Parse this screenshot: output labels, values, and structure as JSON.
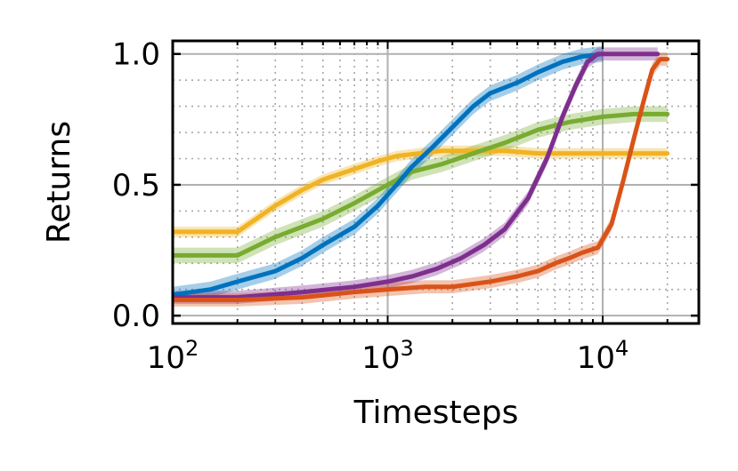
{
  "chart_data": {
    "type": "line",
    "xlabel": "Timesteps",
    "ylabel": "Returns",
    "x_scale": "log",
    "xlim": [
      100,
      28000
    ],
    "ylim": [
      -0.03,
      1.05
    ],
    "grid": true,
    "minor_grid": true,
    "x_ticks": [
      {
        "value": 100,
        "base": "10",
        "exp": "2"
      },
      {
        "value": 1000,
        "base": "10",
        "exp": "3"
      },
      {
        "value": 10000,
        "base": "10",
        "exp": "4"
      }
    ],
    "y_ticks": [
      {
        "value": 0.0,
        "label": "0.0"
      },
      {
        "value": 0.5,
        "label": "0.5"
      },
      {
        "value": 1.0,
        "label": "1.0"
      }
    ],
    "series": [
      {
        "color": "#f0b323",
        "x": [
          100,
          200,
          300,
          400,
          500,
          700,
          900,
          1100,
          1400,
          1800,
          2500,
          3500,
          5000,
          8000,
          12000,
          20000
        ],
        "y": [
          0.32,
          0.32,
          0.42,
          0.48,
          0.52,
          0.56,
          0.59,
          0.61,
          0.62,
          0.63,
          0.63,
          0.63,
          0.62,
          0.62,
          0.62,
          0.62
        ],
        "band": 0.02
      },
      {
        "color": "#77ac30",
        "x": [
          100,
          200,
          300,
          500,
          700,
          1000,
          1300,
          1800,
          2500,
          3500,
          5000,
          7000,
          10000,
          14000,
          20000
        ],
        "y": [
          0.23,
          0.23,
          0.3,
          0.37,
          0.43,
          0.5,
          0.55,
          0.58,
          0.62,
          0.66,
          0.71,
          0.74,
          0.76,
          0.77,
          0.77
        ],
        "band": 0.03
      },
      {
        "color": "#0072bd",
        "x": [
          100,
          150,
          200,
          300,
          400,
          500,
          700,
          900,
          1100,
          1300,
          1600,
          2000,
          2500,
          3000,
          4000,
          5000,
          6500,
          8000,
          10000
        ],
        "y": [
          0.08,
          0.1,
          0.13,
          0.17,
          0.22,
          0.27,
          0.34,
          0.42,
          0.5,
          0.57,
          0.64,
          0.72,
          0.8,
          0.85,
          0.89,
          0.93,
          0.97,
          0.99,
          1.0
        ],
        "band": 0.03
      },
      {
        "color": "#7e2f8e",
        "x": [
          100,
          200,
          400,
          700,
          1000,
          1300,
          1700,
          2200,
          2800,
          3500,
          4500,
          5500,
          6500,
          7500,
          8500,
          9500,
          11000,
          15000,
          18000
        ],
        "y": [
          0.07,
          0.07,
          0.09,
          0.11,
          0.13,
          0.15,
          0.18,
          0.22,
          0.27,
          0.33,
          0.45,
          0.6,
          0.76,
          0.88,
          0.97,
          1.0,
          1.0,
          1.0,
          1.0
        ],
        "band": 0.025
      },
      {
        "color": "#d95319",
        "x": [
          100,
          200,
          400,
          700,
          1000,
          1500,
          2000,
          3000,
          4000,
          5000,
          6000,
          7000,
          8000,
          9500,
          11000,
          12500,
          14000,
          15500,
          17000,
          18500,
          20000
        ],
        "y": [
          0.06,
          0.06,
          0.07,
          0.09,
          0.1,
          0.11,
          0.11,
          0.13,
          0.15,
          0.17,
          0.2,
          0.22,
          0.24,
          0.26,
          0.35,
          0.52,
          0.68,
          0.82,
          0.94,
          0.98,
          0.98
        ],
        "band": 0.025
      }
    ]
  }
}
